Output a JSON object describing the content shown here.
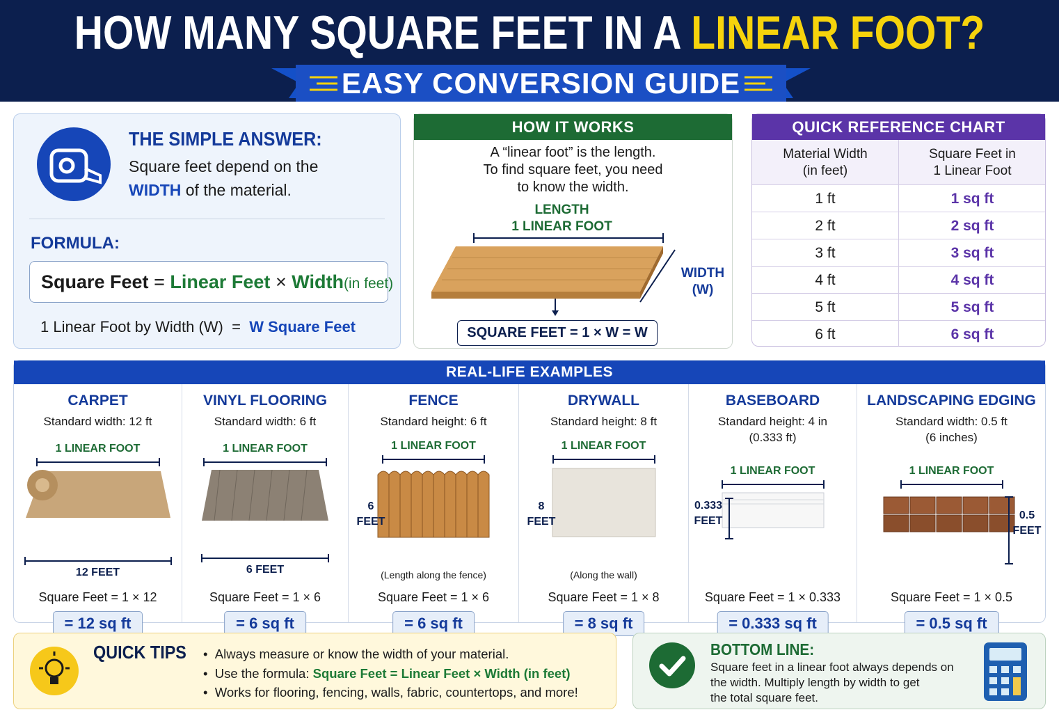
{
  "header": {
    "title_main": "HOW MANY SQUARE FEET IN A",
    "title_accent": "LINEAR FOOT?",
    "subtitle": "EASY CONVERSION GUIDE"
  },
  "simple_answer": {
    "heading": "THE SIMPLE ANSWER:",
    "text_before": "Square feet depend on the",
    "emphasis": "WIDTH",
    "text_after": "of the material.",
    "formula_label": "FORMULA:",
    "formula": [
      "Square Feet",
      "=",
      "Linear Feet",
      "×",
      "Width",
      "(in feet)"
    ],
    "rule": [
      "1 Linear Foot by Width (W)",
      "=",
      "W Square Feet"
    ]
  },
  "how_it_works": {
    "heading": "HOW IT WORKS",
    "lines": [
      "A “linear foot” is the length.",
      "To find square feet, you need",
      "to know the width."
    ],
    "length_label": [
      "LENGTH",
      "1 LINEAR FOOT"
    ],
    "width_label": [
      "WIDTH",
      "(W)"
    ],
    "result": "SQUARE FEET = 1 × W = W"
  },
  "reference_chart": {
    "heading": "QUICK REFERENCE CHART",
    "columns": [
      [
        "Material Width",
        "(in feet)"
      ],
      [
        "Square Feet in",
        "1 Linear Foot"
      ]
    ],
    "rows": [
      [
        "1 ft",
        "1 sq ft"
      ],
      [
        "2 ft",
        "2 sq ft"
      ],
      [
        "3 ft",
        "3 sq ft"
      ],
      [
        "4 ft",
        "4 sq ft"
      ],
      [
        "5 ft",
        "5 sq ft"
      ],
      [
        "6 ft",
        "6 sq ft"
      ]
    ]
  },
  "examples": {
    "heading": "REAL-LIFE EXAMPLES",
    "items": [
      {
        "name": "CARPET",
        "spec": [
          "Standard width: 12 ft"
        ],
        "span_label": "1 LINEAR FOOT",
        "dimension": [
          "12 FEET"
        ],
        "formula": "Square Feet = 1 × 12",
        "result": "= 12 sq ft"
      },
      {
        "name": "VINYL FLOORING",
        "spec": [
          "Standard width: 6 ft"
        ],
        "span_label": "1 LINEAR FOOT",
        "dimension": [
          "6 FEET"
        ],
        "formula": "Square Feet = 1 × 6",
        "result": "= 6 sq ft"
      },
      {
        "name": "FENCE",
        "spec": [
          "Standard height: 6 ft"
        ],
        "span_label": "1 LINEAR FOOT",
        "dimension": [
          "6",
          "FEET"
        ],
        "note": "(Length along the fence)",
        "formula": "Square Feet = 1 × 6",
        "result": "= 6 sq ft"
      },
      {
        "name": "DRYWALL",
        "spec": [
          "Standard height: 8 ft"
        ],
        "span_label": "1 LINEAR FOOT",
        "dimension": [
          "8",
          "FEET"
        ],
        "note": "(Along the wall)",
        "formula": "Square Feet = 1 × 8",
        "result": "= 8 sq ft"
      },
      {
        "name": "BASEBOARD",
        "spec": [
          "Standard height: 4 in",
          "(0.333 ft)"
        ],
        "span_label": "1 LINEAR FOOT",
        "dimension": [
          "0.333",
          "FEET"
        ],
        "formula": "Square Feet = 1 × 0.333",
        "result": "= 0.333 sq ft"
      },
      {
        "name": "LANDSCAPING EDGING",
        "spec": [
          "Standard width: 0.5 ft",
          "(6 inches)"
        ],
        "span_label": "1 LINEAR FOOT",
        "dimension": [
          "0.5",
          "FEET"
        ],
        "formula": "Square Feet = 1 × 0.5",
        "result": "= 0.5 sq ft"
      }
    ]
  },
  "tips": {
    "heading": "QUICK TIPS",
    "items": [
      "Always measure or know the width of your material.",
      "Use the formula:",
      "Works for flooring, fencing, walls, fabric, countertops, and more!"
    ],
    "formula": "Square Feet = Linear Feet × Width (in feet)"
  },
  "bottom_line": {
    "heading": "BOTTOM LINE:",
    "lines": [
      "Square feet in a linear foot always depends on",
      "the width. Multiply length by width to get",
      "the total square feet."
    ]
  }
}
